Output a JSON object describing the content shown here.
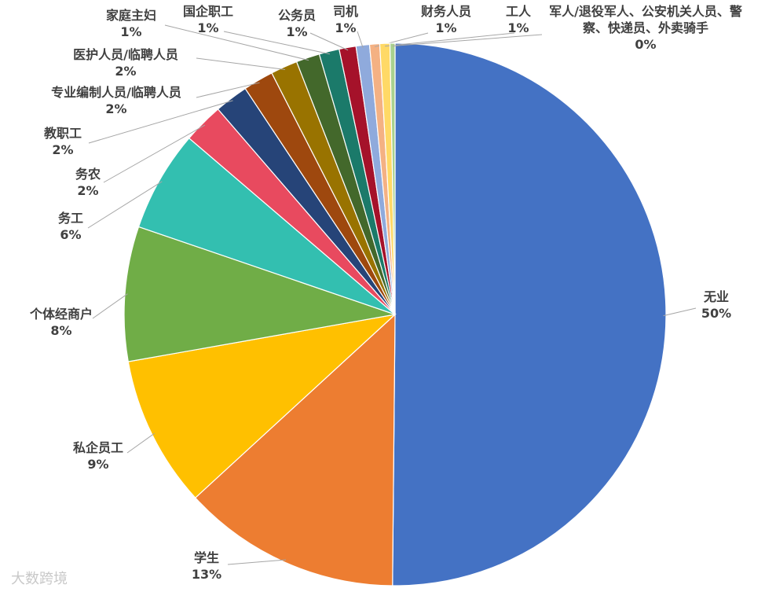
{
  "chart_data": {
    "type": "pie",
    "categories": [
      "无业",
      "学生",
      "私企员工",
      "个体经商户",
      "务工",
      "务农",
      "教职工",
      "专业编制人员/临聘人员",
      "医护人员/临聘人员",
      "家庭主妇",
      "国企职工",
      "公务员",
      "司机",
      "财务人员",
      "工人",
      "军人/退役军人、公安机关人员、警察、快递员、外卖骑手"
    ],
    "values": [
      50,
      13,
      9,
      8,
      6,
      2.4,
      2,
      1.8,
      1.6,
      1.4,
      1.2,
      1,
      0.8,
      0.6,
      0.6,
      0.3
    ],
    "value_labels": [
      "50%",
      "13%",
      "9%",
      "8%",
      "6%",
      "2%",
      "2%",
      "2%",
      "2%",
      "1%",
      "1%",
      "1%",
      "1%",
      "1%",
      "1%",
      "0%"
    ],
    "colors": [
      "#4472c4",
      "#ed7d31",
      "#ffc000",
      "#70ad47",
      "#33bfb0",
      "#e84a5f",
      "#264478",
      "#9e480e",
      "#997300",
      "#43682b",
      "#1b7a6a",
      "#a5122a",
      "#8faadc",
      "#f4b183",
      "#ffd966",
      "#a9d18e"
    ],
    "watermark": "大数跨境"
  }
}
